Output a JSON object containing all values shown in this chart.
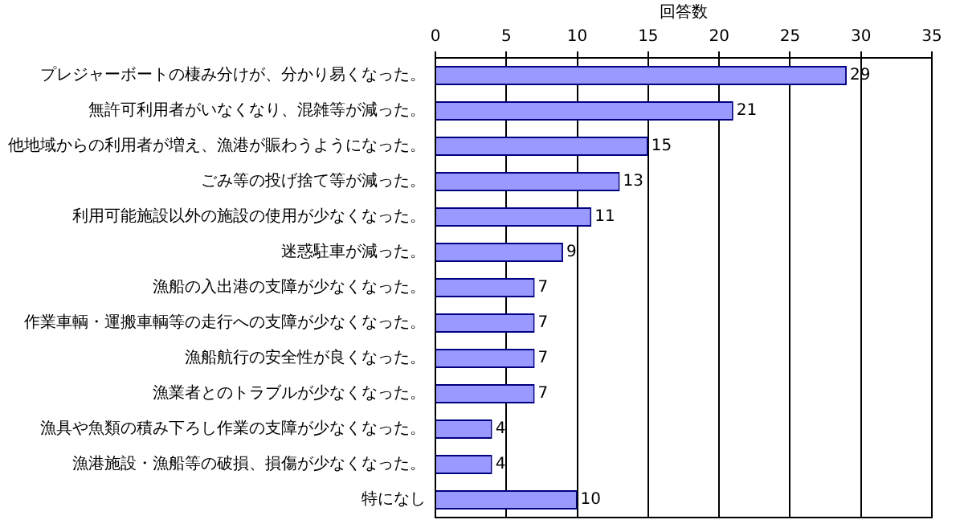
{
  "chart_data": {
    "type": "bar",
    "orientation": "horizontal",
    "xlabel": "回答数",
    "categories": [
      "プレジャーボートの棲み分けが、分かり易くなった。",
      "無許可利用者がいなくなり、混雑等が減った。",
      "他地域からの利用者が増え、漁港が賑わうようになった。",
      "ごみ等の投げ捨て等が減った。",
      "利用可能施設以外の施設の使用が少なくなった。",
      "迷惑駐車が減った。",
      "漁船の入出港の支障が少なくなった。",
      "作業車輌・運搬車輌等の走行への支障が少なくなった。",
      "漁船航行の安全性が良くなった。",
      "漁業者とのトラブルが少なくなった。",
      "漁具や魚類の積み下ろし作業の支障が少なくなった。",
      "漁港施設・漁船等の破損、損傷が少なくなった。",
      "特になし"
    ],
    "values": [
      29,
      21,
      15,
      13,
      11,
      9,
      7,
      7,
      7,
      7,
      4,
      4,
      10
    ],
    "color": "#9999ff",
    "xlim": [
      0,
      35
    ],
    "xticks": [
      0,
      5,
      10,
      15,
      20,
      25,
      30,
      35
    ],
    "grid": "x",
    "data_labels": true,
    "legend": false
  }
}
